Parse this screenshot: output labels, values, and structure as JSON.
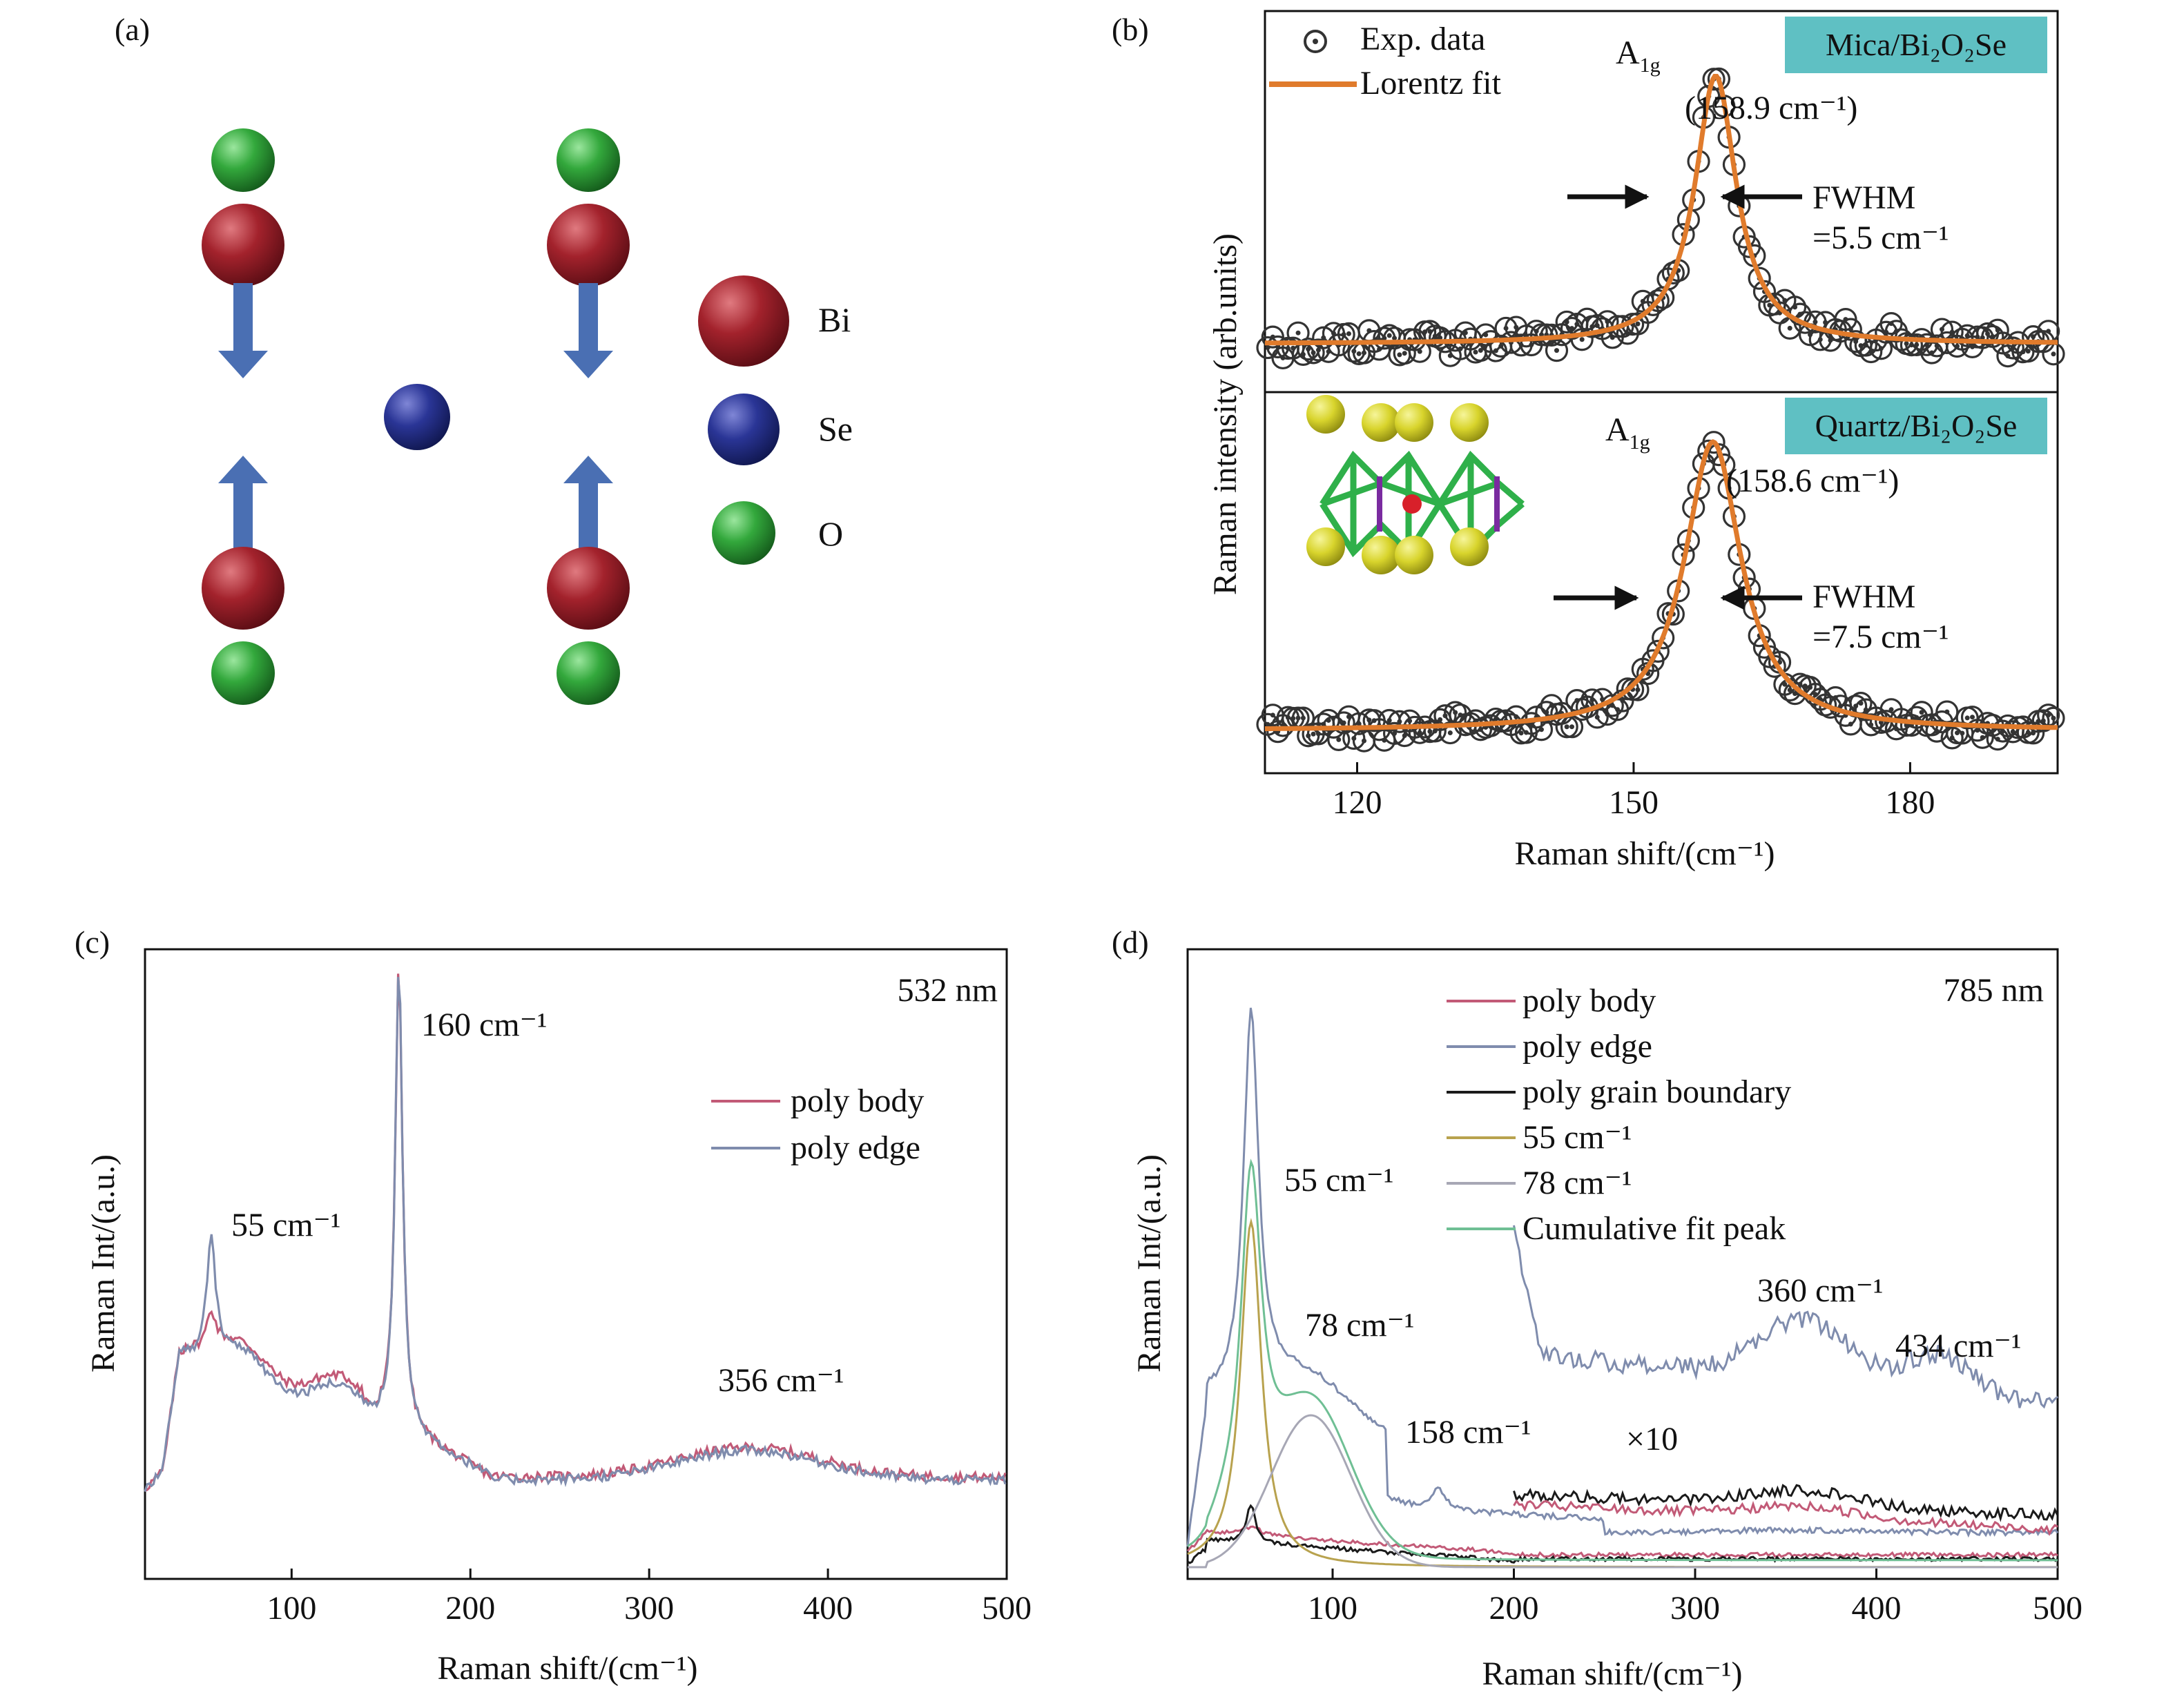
{
  "panel_labels": [
    "(a)",
    "(b)",
    "(c)",
    "(d)"
  ],
  "colors": {
    "bi": "#9b1b24",
    "se": "#25308f",
    "o": "#2fa339",
    "arrow": "#4569b0",
    "lorentz": "#e07b2c",
    "exp_marker": "#333333",
    "box": "#5fc0c3",
    "poly_body": "#c25a77",
    "poly_edge": "#7f8cad",
    "poly_gb": "#1a1a1a",
    "fit55": "#b8a24e",
    "fit78": "#a7a7b5",
    "cumulative": "#6fbf94"
  },
  "panel_a": {
    "legend": [
      {
        "label": "Bi",
        "color_key": "bi"
      },
      {
        "label": "Se",
        "color_key": "se"
      },
      {
        "label": "O",
        "color_key": "o"
      }
    ]
  },
  "chart_data": [
    {
      "id": "b",
      "type": "scatter",
      "xlabel": "Raman shift/(cm⁻¹)",
      "ylabel": "Raman intensity (arb.units)",
      "xlim": [
        110,
        196
      ],
      "xticks": [
        120,
        150,
        180
      ],
      "legend": [
        {
          "label": "Exp. data",
          "kind": "marker"
        },
        {
          "label": "Lorentz fit",
          "kind": "line"
        }
      ],
      "subpanels": [
        {
          "substrate": "Mica/Bi₂O₂Se",
          "peak_label": "A",
          "peak_sub": "1g",
          "peak_center": 158.9,
          "peak_text": "(158.9 cm⁻¹)",
          "fwhm": 5.5,
          "fwhm_l1": "FWHM",
          "fwhm_l2": "=5.5 cm⁻¹"
        },
        {
          "substrate": "Quartz/Bi₂O₂Se",
          "peak_label": "A",
          "peak_sub": "1g",
          "peak_center": 158.6,
          "peak_text": "(158.6 cm⁻¹)",
          "fwhm": 7.5,
          "fwhm_l1": "FWHM",
          "fwhm_l2": "=7.5 cm⁻¹"
        }
      ]
    },
    {
      "id": "c",
      "type": "line",
      "xlabel": "Raman shift/(cm⁻¹)",
      "ylabel": "Raman Int/(a.u.)",
      "xlim": [
        18,
        500
      ],
      "xticks": [
        100,
        200,
        300,
        400,
        500
      ],
      "laser": "532 nm",
      "series": [
        {
          "name": "poly body",
          "color_key": "poly_body"
        },
        {
          "name": "poly edge",
          "color_key": "poly_edge"
        }
      ],
      "annotations": [
        {
          "text": "55 cm⁻¹",
          "x": 55
        },
        {
          "text": "160 cm⁻¹",
          "x": 160
        },
        {
          "text": "356 cm⁻¹",
          "x": 356
        }
      ]
    },
    {
      "id": "d",
      "type": "line",
      "xlabel": "Raman shift/(cm⁻¹)",
      "ylabel": "Raman Int/(a.u.)",
      "xlim": [
        20,
        500
      ],
      "xticks": [
        100,
        200,
        300,
        400,
        500
      ],
      "laser": "785 nm",
      "series": [
        {
          "name": "poly body",
          "color_key": "poly_body"
        },
        {
          "name": "poly edge",
          "color_key": "poly_edge"
        },
        {
          "name": "poly grain boundary",
          "color_key": "poly_gb"
        },
        {
          "name": "55 cm⁻¹",
          "color_key": "fit55"
        },
        {
          "name": "78 cm⁻¹",
          "color_key": "fit78"
        },
        {
          "name": "Cumulative fit peak",
          "color_key": "cumulative"
        }
      ],
      "annotations": [
        {
          "text": "55 cm⁻¹",
          "x": 55
        },
        {
          "text": "78 cm⁻¹",
          "x": 78
        },
        {
          "text": "158 cm⁻¹",
          "x": 158
        },
        {
          "text": "360 cm⁻¹",
          "x": 360
        },
        {
          "text": "434 cm⁻¹",
          "x": 434
        },
        {
          "text": "×10",
          "x": 0
        }
      ]
    }
  ]
}
